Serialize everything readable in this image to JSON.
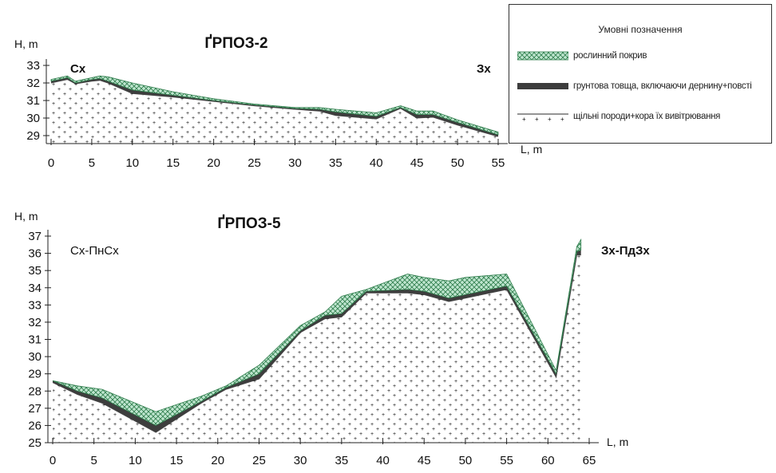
{
  "colors": {
    "vegetation_fill": "#bfe6cf",
    "vegetation_hatch": "#2f7d4c",
    "soil": "#3d3d3d",
    "rock_dot": "#8a8a8a",
    "axis": "#222222"
  },
  "legend": {
    "title": "Умовні позначення",
    "items": [
      {
        "label": "рослинний покрив",
        "pattern": "veg"
      },
      {
        "label": "грунтова товща, включаючи дернину+повсті",
        "pattern": "soil"
      },
      {
        "label": "щільні породи+кора їх вивітрювання",
        "pattern": "rock"
      }
    ]
  },
  "chart_data": [
    {
      "type": "area",
      "title": "ҐРПОЗ-2",
      "ylabel": "H, m",
      "xlabel": "L, m",
      "left_label": "Сх",
      "right_label": "Зх",
      "xlim": [
        0,
        55
      ],
      "ylim": [
        28.5,
        33
      ],
      "x_ticks": [
        0,
        5,
        10,
        15,
        20,
        25,
        30,
        35,
        40,
        45,
        50,
        55
      ],
      "y_ticks": [
        29,
        30,
        31,
        32,
        33
      ],
      "series": [
        {
          "name": "рослинний покрив",
          "x": [
            0,
            1,
            2,
            3,
            5,
            6,
            7,
            10,
            15,
            20,
            25,
            30,
            33,
            35,
            40,
            43,
            45,
            47,
            50,
            55
          ],
          "values": [
            32.2,
            32.3,
            32.4,
            32.1,
            32.3,
            32.4,
            32.35,
            32.0,
            31.5,
            31.1,
            30.8,
            30.6,
            30.6,
            30.5,
            30.3,
            30.7,
            30.4,
            30.4,
            29.9,
            29.2
          ]
        },
        {
          "name": "грунтова товща, включаючи дернину+повсті",
          "x": [
            0,
            1,
            2,
            3,
            5,
            6,
            7,
            10,
            15,
            20,
            25,
            30,
            33,
            35,
            40,
            43,
            45,
            47,
            50,
            55
          ],
          "values": [
            32.1,
            32.2,
            32.3,
            32.0,
            32.2,
            32.25,
            32.1,
            31.6,
            31.3,
            31.0,
            30.75,
            30.55,
            30.5,
            30.35,
            30.1,
            30.6,
            30.2,
            30.2,
            29.75,
            29.05
          ]
        },
        {
          "name": "щільні породи+кора їх вивітрювання",
          "x": [
            0,
            1,
            2,
            3,
            5,
            6,
            7,
            10,
            15,
            20,
            25,
            30,
            33,
            35,
            40,
            43,
            45,
            47,
            50,
            55
          ],
          "values": [
            32.0,
            32.1,
            32.2,
            31.95,
            32.1,
            32.15,
            32.0,
            31.4,
            31.2,
            30.95,
            30.7,
            30.5,
            30.4,
            30.15,
            29.95,
            30.55,
            30.0,
            30.05,
            29.6,
            28.95
          ]
        }
      ]
    },
    {
      "type": "area",
      "title": "ҐРПОЗ-5",
      "ylabel": "H, m",
      "xlabel": "L, m",
      "left_label": "Сх-ПнСх",
      "right_label": "Зх-ПдЗх",
      "xlim": [
        0,
        65
      ],
      "ylim": [
        25,
        37
      ],
      "x_ticks": [
        0,
        5,
        10,
        15,
        20,
        25,
        30,
        35,
        40,
        45,
        50,
        55,
        60,
        65
      ],
      "y_ticks": [
        25,
        26,
        27,
        28,
        29,
        30,
        31,
        32,
        33,
        34,
        35,
        36,
        37
      ],
      "series": [
        {
          "name": "рослинний покрив",
          "x": [
            0,
            3,
            6,
            12.5,
            18,
            21,
            25,
            30,
            33,
            35,
            38,
            43,
            45,
            48,
            50,
            55,
            61,
            63.5,
            64
          ],
          "values": [
            28.6,
            28.3,
            28.1,
            26.8,
            27.7,
            28.3,
            29.5,
            31.8,
            32.6,
            33.5,
            33.9,
            34.8,
            34.6,
            34.4,
            34.6,
            34.8,
            29.2,
            36.4,
            36.8
          ]
        },
        {
          "name": "грунтова товща, включаючи дернину+повсті",
          "x": [
            0,
            3,
            6,
            12.5,
            18,
            21,
            25,
            30,
            33,
            35,
            38,
            43,
            45,
            48,
            50,
            55,
            61,
            63.5,
            64
          ],
          "values": [
            28.6,
            28.0,
            27.6,
            26.0,
            27.4,
            28.2,
            29.0,
            31.5,
            32.4,
            32.5,
            33.8,
            33.9,
            33.8,
            33.4,
            33.6,
            34.1,
            29.0,
            36.1,
            36.2
          ]
        },
        {
          "name": "щільні породи+кора їх вивітрювання",
          "x": [
            0,
            3,
            6,
            12.5,
            18,
            21,
            25,
            30,
            33,
            35,
            38,
            43,
            45,
            48,
            50,
            55,
            61,
            63.5,
            64
          ],
          "values": [
            28.5,
            27.8,
            27.3,
            25.6,
            27.3,
            28.1,
            28.7,
            31.4,
            32.2,
            32.3,
            33.7,
            33.7,
            33.6,
            33.2,
            33.4,
            33.9,
            28.8,
            35.9,
            35.9
          ]
        }
      ]
    }
  ]
}
